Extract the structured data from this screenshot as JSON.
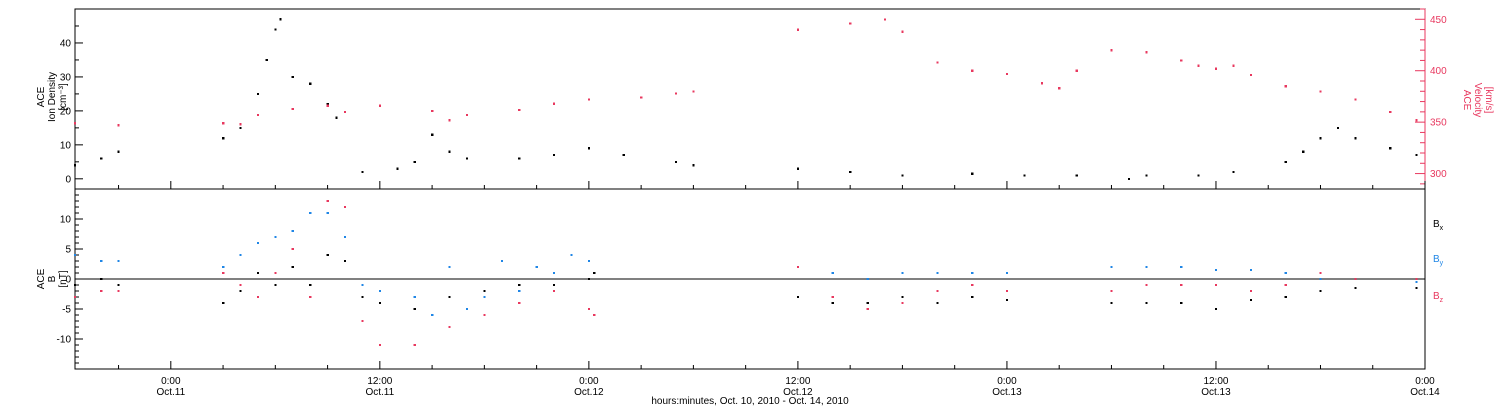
{
  "chart_data": [
    {
      "type": "scatter",
      "panel": "top",
      "ylabel_lines": [
        "ACE",
        "Ion Density",
        "[cm⁻³]"
      ],
      "ylabel_right_lines": [
        "ACE",
        "Velocity",
        "[km/s]"
      ],
      "ylim": [
        -3,
        50
      ],
      "ylim_right": [
        285,
        460
      ],
      "yticks": [
        0,
        10,
        20,
        30,
        40
      ],
      "yticks_right": [
        300,
        350,
        400,
        450
      ],
      "x_unit": "hours since Oct.10 00:00",
      "xlim": [
        18.5,
        96
      ],
      "colors": {
        "density": "#000000",
        "velocity": "#e8385f"
      },
      "series": [
        {
          "key": "density",
          "axis": "left",
          "points": [
            [
              18.5,
              4
            ],
            [
              20,
              6
            ],
            [
              21,
              8
            ],
            [
              27,
              12
            ],
            [
              28,
              15
            ],
            [
              29,
              25
            ],
            [
              29.5,
              35
            ],
            [
              30,
              44
            ],
            [
              30.3,
              47
            ],
            [
              31,
              30
            ],
            [
              32,
              28
            ],
            [
              33,
              22
            ],
            [
              33.5,
              18
            ],
            [
              35,
              2
            ],
            [
              37,
              3
            ],
            [
              38,
              5
            ],
            [
              39,
              13
            ],
            [
              40,
              8
            ],
            [
              41,
              6
            ],
            [
              44,
              6
            ],
            [
              46,
              7
            ],
            [
              48,
              9
            ],
            [
              50,
              7
            ],
            [
              53,
              5
            ],
            [
              54,
              4
            ],
            [
              60,
              3
            ],
            [
              63,
              2
            ],
            [
              66,
              1
            ],
            [
              70,
              1.5
            ],
            [
              73,
              1
            ],
            [
              76,
              1
            ],
            [
              79,
              0
            ],
            [
              80,
              1
            ],
            [
              83,
              1
            ],
            [
              85,
              2
            ],
            [
              88,
              5
            ],
            [
              89,
              8
            ],
            [
              90,
              12
            ],
            [
              91,
              15
            ],
            [
              92,
              12
            ],
            [
              94,
              9
            ],
            [
              95.5,
              7
            ]
          ]
        },
        {
          "key": "velocity",
          "axis": "right",
          "points": [
            [
              18.5,
              349
            ],
            [
              21,
              347
            ],
            [
              27,
              349
            ],
            [
              28,
              348
            ],
            [
              29,
              357
            ],
            [
              31,
              363
            ],
            [
              33,
              366
            ],
            [
              34,
              360
            ],
            [
              36,
              366
            ],
            [
              39,
              361
            ],
            [
              40,
              352
            ],
            [
              41,
              357
            ],
            [
              44,
              362
            ],
            [
              46,
              368
            ],
            [
              48,
              372
            ],
            [
              51,
              374
            ],
            [
              53,
              378
            ],
            [
              54,
              380
            ],
            [
              60,
              440
            ],
            [
              63,
              446
            ],
            [
              65,
              450
            ],
            [
              66,
              438
            ],
            [
              68,
              408
            ],
            [
              70,
              400
            ],
            [
              72,
              397
            ],
            [
              74,
              388
            ],
            [
              75,
              383
            ],
            [
              76,
              400
            ],
            [
              78,
              420
            ],
            [
              80,
              418
            ],
            [
              82,
              410
            ],
            [
              83,
              405
            ],
            [
              84,
              402
            ],
            [
              85,
              405
            ],
            [
              86,
              396
            ],
            [
              88,
              385
            ],
            [
              90,
              380
            ],
            [
              92,
              372
            ],
            [
              94,
              360
            ],
            [
              95.5,
              352
            ]
          ]
        }
      ]
    },
    {
      "type": "scatter",
      "panel": "bottom",
      "ylabel_lines": [
        "ACE",
        "B",
        "[nT]"
      ],
      "ylim": [
        -15,
        15
      ],
      "yticks": [
        -10,
        -5,
        0,
        5,
        10
      ],
      "x_unit": "hours since Oct.10 00:00",
      "xlim": [
        18.5,
        96
      ],
      "xticks": [
        {
          "x": 24,
          "time": "0:00",
          "date": "Oct.11"
        },
        {
          "x": 36,
          "time": "12:00",
          "date": "Oct.11"
        },
        {
          "x": 48,
          "time": "0:00",
          "date": "Oct.12"
        },
        {
          "x": 60,
          "time": "12:00",
          "date": "Oct.12"
        },
        {
          "x": 72,
          "time": "0:00",
          "date": "Oct.13"
        },
        {
          "x": 84,
          "time": "12:00",
          "date": "Oct.13"
        },
        {
          "x": 96,
          "time": "0:00",
          "date": "Oct.14"
        }
      ],
      "xlabel": "hours:minutes, Oct. 10, 2010 - Oct. 14, 2010",
      "colors": {
        "bx": "#000000",
        "by": "#1f86e6",
        "bz": "#e8385f"
      },
      "series": [
        {
          "key": "bx",
          "label": "B",
          "subscript": "x",
          "points": [
            [
              18.5,
              -1
            ],
            [
              20,
              0
            ],
            [
              21,
              -1
            ],
            [
              27,
              -4
            ],
            [
              28,
              -2
            ],
            [
              29,
              1
            ],
            [
              30,
              -1
            ],
            [
              31,
              2
            ],
            [
              32,
              -1
            ],
            [
              33,
              4
            ],
            [
              34,
              3
            ],
            [
              35,
              -3
            ],
            [
              36,
              -4
            ],
            [
              38,
              -5
            ],
            [
              40,
              -3
            ],
            [
              42,
              -2
            ],
            [
              44,
              -1
            ],
            [
              46,
              -1
            ],
            [
              48,
              0
            ],
            [
              48.3,
              1
            ],
            [
              60,
              -3
            ],
            [
              62,
              -4
            ],
            [
              64,
              -4
            ],
            [
              66,
              -3
            ],
            [
              68,
              -4
            ],
            [
              70,
              -3
            ],
            [
              72,
              -3.5
            ],
            [
              78,
              -4
            ],
            [
              80,
              -4
            ],
            [
              82,
              -4
            ],
            [
              84,
              -5
            ],
            [
              86,
              -3.5
            ],
            [
              88,
              -3
            ],
            [
              90,
              -2
            ],
            [
              92,
              -1.5
            ],
            [
              95.5,
              -1.5
            ]
          ]
        },
        {
          "key": "by",
          "label": "B",
          "subscript": "y",
          "points": [
            [
              18.5,
              4
            ],
            [
              20,
              3
            ],
            [
              21,
              3
            ],
            [
              27,
              2
            ],
            [
              28,
              4
            ],
            [
              29,
              6
            ],
            [
              30,
              7
            ],
            [
              31,
              8
            ],
            [
              32,
              11
            ],
            [
              33,
              11
            ],
            [
              34,
              7
            ],
            [
              35,
              -1
            ],
            [
              36,
              -2
            ],
            [
              38,
              -3
            ],
            [
              39,
              -6
            ],
            [
              40,
              2
            ],
            [
              41,
              -5
            ],
            [
              42,
              -3
            ],
            [
              43,
              3
            ],
            [
              44,
              -2
            ],
            [
              45,
              2
            ],
            [
              46,
              1
            ],
            [
              47,
              4
            ],
            [
              48,
              3
            ],
            [
              60,
              2
            ],
            [
              62,
              1
            ],
            [
              64,
              0
            ],
            [
              66,
              1
            ],
            [
              68,
              1
            ],
            [
              70,
              1
            ],
            [
              72,
              1
            ],
            [
              78,
              2
            ],
            [
              80,
              2
            ],
            [
              82,
              2
            ],
            [
              84,
              1.5
            ],
            [
              86,
              1.5
            ],
            [
              88,
              1
            ],
            [
              90,
              0
            ],
            [
              92,
              0
            ],
            [
              95.5,
              -0.5
            ]
          ]
        },
        {
          "key": "bz",
          "label": "B",
          "subscript": "z",
          "points": [
            [
              18.5,
              -3
            ],
            [
              20,
              -2
            ],
            [
              21,
              -2
            ],
            [
              27,
              1
            ],
            [
              28,
              -1
            ],
            [
              29,
              -3
            ],
            [
              30,
              1
            ],
            [
              31,
              5
            ],
            [
              32,
              -3
            ],
            [
              33,
              13
            ],
            [
              34,
              12
            ],
            [
              35,
              -7
            ],
            [
              36,
              -11
            ],
            [
              38,
              -11
            ],
            [
              40,
              -8
            ],
            [
              42,
              -6
            ],
            [
              44,
              -4
            ],
            [
              46,
              -2
            ],
            [
              48,
              -5
            ],
            [
              48.3,
              -6
            ],
            [
              60,
              2
            ],
            [
              62,
              -3
            ],
            [
              64,
              -5
            ],
            [
              66,
              -4
            ],
            [
              68,
              -2
            ],
            [
              70,
              -1
            ],
            [
              72,
              -2
            ],
            [
              78,
              -2
            ],
            [
              80,
              -1
            ],
            [
              82,
              -1
            ],
            [
              84,
              -1
            ],
            [
              86,
              -2
            ],
            [
              88,
              -1
            ],
            [
              90,
              1
            ],
            [
              92,
              0
            ],
            [
              95.5,
              0
            ]
          ]
        }
      ]
    }
  ]
}
